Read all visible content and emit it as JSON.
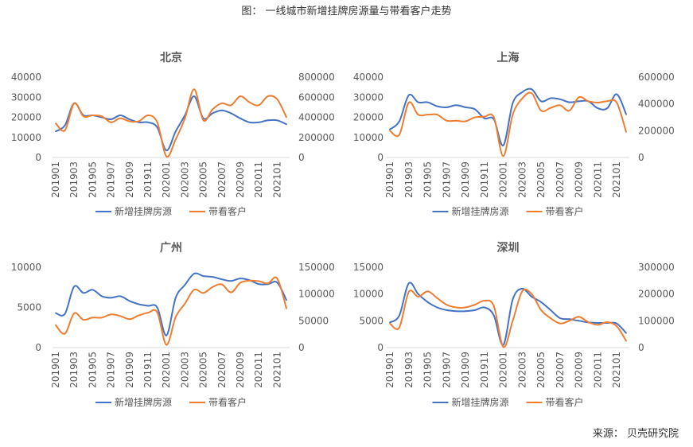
{
  "title": "图： 一线城市新增挂牌房源量与带看客户走势",
  "source": "来源： 贝壳研究院",
  "colors": {
    "series1": "#4472C4",
    "series2": "#ED7D31",
    "grid": "#d9d9d9",
    "text": "#595959"
  },
  "chart_data": [
    {
      "type": "line",
      "title": "北京",
      "categories": [
        "201901",
        "201902",
        "201903",
        "201904",
        "201905",
        "201906",
        "201907",
        "201908",
        "201909",
        "201910",
        "201911",
        "201912",
        "202001",
        "202002",
        "202003",
        "202004",
        "202005",
        "202006",
        "202007",
        "202008",
        "202009",
        "202010",
        "202011",
        "202012",
        "202101",
        "202102"
      ],
      "x_tick_labels": [
        "201901",
        "201903",
        "201905",
        "201907",
        "201909",
        "201911",
        "202001",
        "202003",
        "202005",
        "202007",
        "202009",
        "202011",
        "202101"
      ],
      "left_yticks": [
        "0",
        "10000",
        "20000",
        "30000",
        "40000"
      ],
      "right_yticks": [
        "0",
        "200000",
        "400000",
        "600000",
        "800000"
      ],
      "left_ylim": [
        0,
        40000
      ],
      "right_ylim": [
        0,
        800000
      ],
      "grid": false,
      "legend": "bottom",
      "series": [
        {
          "name": "新增挂牌房源",
          "axis": "left",
          "values": [
            13000,
            16000,
            27000,
            21000,
            21000,
            20000,
            19000,
            21000,
            19000,
            17500,
            17500,
            15000,
            3500,
            13000,
            21000,
            30500,
            19500,
            22000,
            23500,
            22000,
            19500,
            17500,
            17500,
            18500,
            18500,
            16500
          ]
        },
        {
          "name": "带看客户",
          "axis": "right",
          "values": [
            340000,
            270000,
            540000,
            410000,
            420000,
            410000,
            350000,
            390000,
            360000,
            360000,
            420000,
            350000,
            10000,
            180000,
            390000,
            680000,
            370000,
            480000,
            540000,
            520000,
            610000,
            550000,
            520000,
            610000,
            580000,
            400000
          ]
        }
      ]
    },
    {
      "type": "line",
      "title": "上海",
      "categories": [
        "201901",
        "201902",
        "201903",
        "201904",
        "201905",
        "201906",
        "201907",
        "201908",
        "201909",
        "201910",
        "201911",
        "201912",
        "202001",
        "202002",
        "202003",
        "202004",
        "202005",
        "202006",
        "202007",
        "202008",
        "202009",
        "202010",
        "202011",
        "202012",
        "202101",
        "202102"
      ],
      "x_tick_labels": [
        "201901",
        "201903",
        "201905",
        "201907",
        "201909",
        "201911",
        "202001",
        "202003",
        "202005",
        "202007",
        "202009",
        "202011",
        "202101"
      ],
      "left_yticks": [
        "0",
        "10000",
        "20000",
        "30000",
        "40000"
      ],
      "right_yticks": [
        "0",
        "200000",
        "400000",
        "600000"
      ],
      "left_ylim": [
        0,
        40000
      ],
      "right_ylim": [
        0,
        600000
      ],
      "grid": false,
      "legend": "bottom",
      "series": [
        {
          "name": "新增挂牌房源",
          "axis": "left",
          "values": [
            14000,
            18000,
            31000,
            27500,
            27500,
            25500,
            25000,
            26000,
            25000,
            24000,
            19500,
            19000,
            6000,
            27000,
            32500,
            34000,
            28000,
            29500,
            29000,
            27500,
            28000,
            28000,
            24500,
            24500,
            31500,
            21500
          ]
        },
        {
          "name": "带看客户",
          "axis": "right",
          "values": [
            200000,
            170000,
            410000,
            320000,
            320000,
            320000,
            275000,
            275000,
            270000,
            300000,
            305000,
            300000,
            10000,
            320000,
            440000,
            480000,
            350000,
            370000,
            390000,
            350000,
            450000,
            420000,
            410000,
            420000,
            410000,
            190000
          ]
        }
      ]
    },
    {
      "type": "line",
      "title": "广州",
      "categories": [
        "201901",
        "201902",
        "201903",
        "201904",
        "201905",
        "201906",
        "201907",
        "201908",
        "201909",
        "201910",
        "201911",
        "201912",
        "202001",
        "202002",
        "202003",
        "202004",
        "202005",
        "202006",
        "202007",
        "202008",
        "202009",
        "202010",
        "202011",
        "202012",
        "202101",
        "202102"
      ],
      "x_tick_labels": [
        "201901",
        "201903",
        "201905",
        "201907",
        "201909",
        "201911",
        "202001",
        "202003",
        "202005",
        "202007",
        "202009",
        "202011",
        "202101"
      ],
      "left_yticks": [
        "0",
        "5000",
        "10000"
      ],
      "right_yticks": [
        "0",
        "50000",
        "100000",
        "150000"
      ],
      "left_ylim": [
        0,
        10000
      ],
      "right_ylim": [
        0,
        150000
      ],
      "grid": false,
      "legend": "bottom",
      "series": [
        {
          "name": "新增挂牌房源",
          "axis": "left",
          "values": [
            4300,
            4200,
            7600,
            6800,
            7200,
            6400,
            6200,
            6400,
            5800,
            5400,
            5200,
            5000,
            1500,
            6200,
            7800,
            9200,
            8900,
            8800,
            8500,
            8300,
            8600,
            8400,
            7900,
            7900,
            8100,
            5900
          ]
        },
        {
          "name": "带看客户",
          "axis": "right",
          "values": [
            42000,
            26000,
            64000,
            52000,
            56000,
            56000,
            62000,
            59000,
            53000,
            60000,
            65000,
            66000,
            5000,
            57000,
            82000,
            108000,
            102000,
            113000,
            118000,
            103000,
            121000,
            125000,
            124000,
            120000,
            129000,
            73000
          ]
        }
      ]
    },
    {
      "type": "line",
      "title": "深圳",
      "categories": [
        "201901",
        "201902",
        "201903",
        "201904",
        "201905",
        "201906",
        "201907",
        "201908",
        "201909",
        "201910",
        "201911",
        "201912",
        "202001",
        "202002",
        "202003",
        "202004",
        "202005",
        "202006",
        "202007",
        "202008",
        "202009",
        "202010",
        "202011",
        "202012",
        "202101",
        "202102"
      ],
      "x_tick_labels": [
        "201901",
        "201903",
        "201905",
        "201907",
        "201909",
        "201911",
        "202001",
        "202003",
        "202005",
        "202007",
        "202009",
        "202011",
        "202101"
      ],
      "left_yticks": [
        "0",
        "5000",
        "10000",
        "15000"
      ],
      "right_yticks": [
        "0",
        "100000",
        "200000",
        "300000"
      ],
      "left_ylim": [
        0,
        15000
      ],
      "right_ylim": [
        0,
        300000
      ],
      "grid": false,
      "legend": "bottom",
      "series": [
        {
          "name": "新增挂牌房源",
          "axis": "left",
          "values": [
            4700,
            6000,
            12000,
            10000,
            8500,
            7500,
            7000,
            6800,
            6800,
            7000,
            7500,
            6000,
            500,
            9000,
            11000,
            9500,
            8500,
            7000,
            5500,
            5300,
            5000,
            4700,
            4600,
            4600,
            4500,
            2700
          ]
        },
        {
          "name": "带看客户",
          "axis": "right",
          "values": [
            90000,
            75000,
            208000,
            190000,
            210000,
            185000,
            160000,
            150000,
            150000,
            160000,
            175000,
            155000,
            2000,
            100000,
            210000,
            200000,
            140000,
            110000,
            90000,
            100000,
            115000,
            95000,
            85000,
            95000,
            80000,
            25000
          ]
        }
      ]
    }
  ]
}
